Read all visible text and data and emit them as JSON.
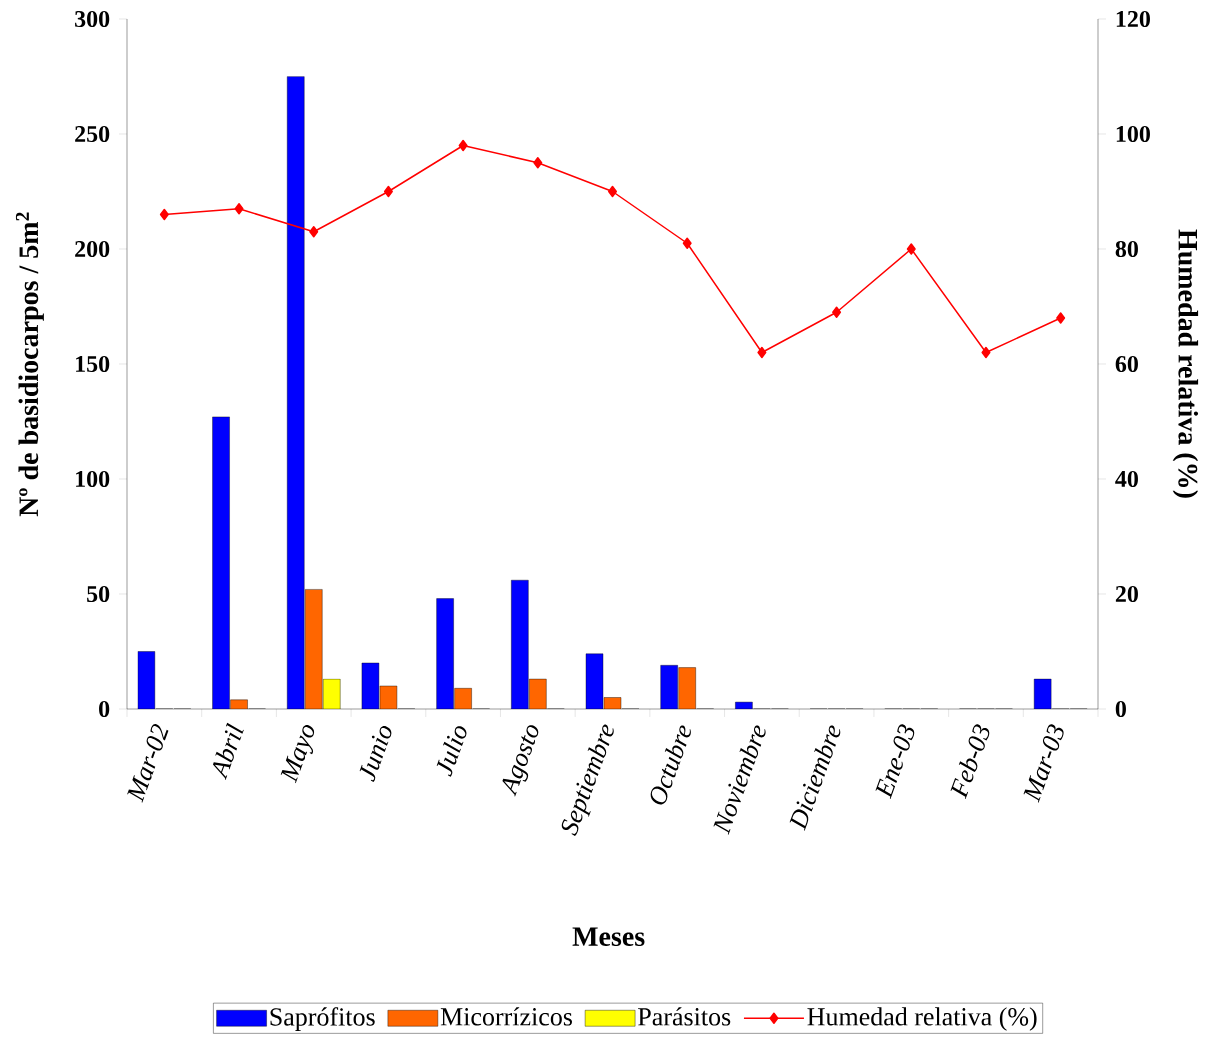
{
  "chart_data": {
    "type": "bar",
    "xlabel": "Meses",
    "ylabel": "Nº de basidiocarpos / 5m$^{2}$",
    "y2label": "Humedad relativa (%)",
    "categories": [
      "Mar-02",
      "Abril",
      "Mayo",
      "Junio",
      "Julio",
      "Agosto",
      "Septiembre",
      "Octubre",
      "Noviembre",
      "Diciembre",
      "Ene-03",
      "Feb-03",
      "Mar-03"
    ],
    "series": [
      {
        "name": "Saprófitos",
        "color": "#0000ff",
        "values": [
          25,
          127,
          275,
          20,
          48,
          56,
          24,
          19,
          3,
          0,
          0,
          0,
          13
        ]
      },
      {
        "name": "Micorrízicos",
        "color": "#ff6600",
        "values": [
          0,
          4,
          52,
          10,
          9,
          13,
          5,
          18,
          0,
          0,
          0,
          0,
          0
        ]
      },
      {
        "name": "Parásitos",
        "color": "#ffff00",
        "values": [
          0,
          0,
          13,
          0,
          0,
          0,
          0,
          0,
          0,
          0,
          0,
          0,
          0
        ]
      },
      {
        "name": "Humedad relativa (%)",
        "type": "line",
        "axis": "y2",
        "color": "#ff0000",
        "values": [
          86,
          87,
          83,
          90,
          98,
          95,
          90,
          81,
          62,
          69,
          80,
          62,
          68
        ]
      }
    ],
    "ylim": [
      0,
      300
    ],
    "yticks": [
      0,
      50,
      100,
      150,
      200,
      250,
      300
    ],
    "y2lim": [
      0,
      120
    ],
    "y2ticks": [
      0,
      20,
      40,
      60,
      80,
      100,
      120
    ],
    "marker": "diamond",
    "legend": "bottom",
    "grid": false
  }
}
